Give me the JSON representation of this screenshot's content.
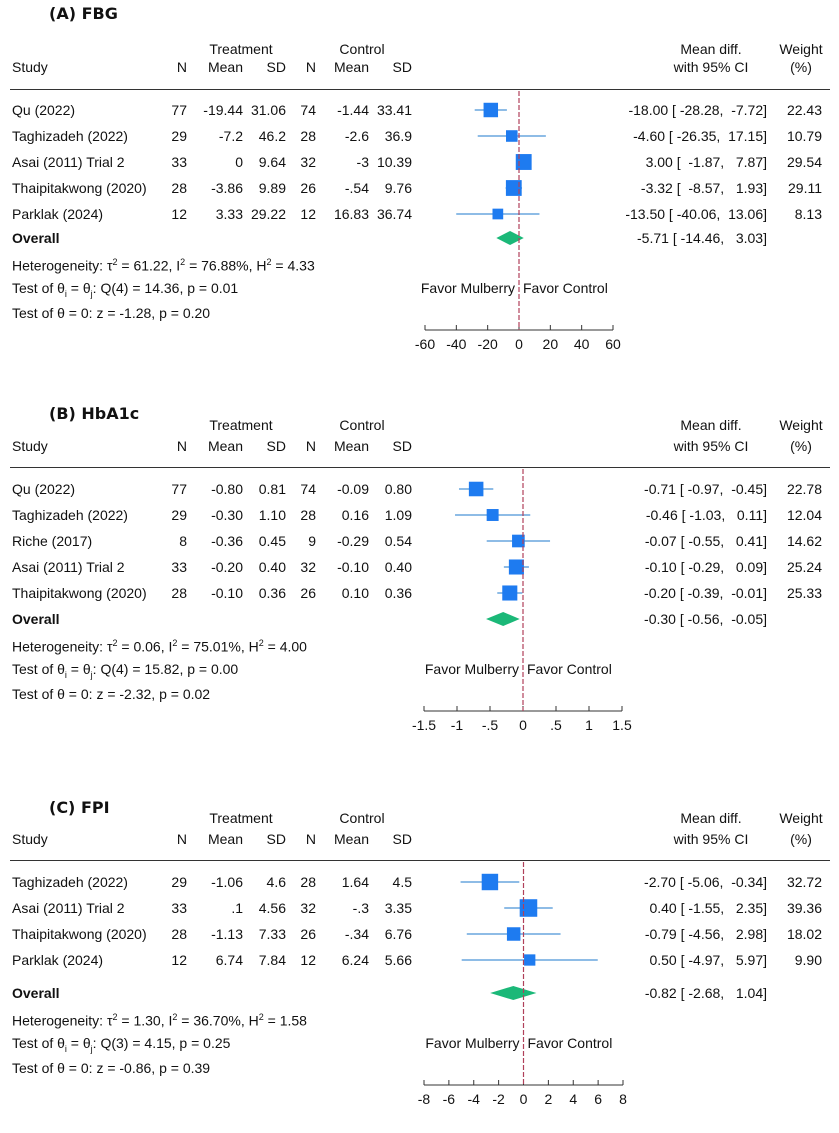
{
  "chart_data": [
    {
      "type": "forest",
      "panel_title": "(A) FBG",
      "headers": {
        "group_treatment": "Treatment",
        "group_control": "Control",
        "study": "Study",
        "n": "N",
        "mean": "Mean",
        "sd": "SD",
        "effect_line1": "Mean diff.",
        "effect_line2": "with 95% CI",
        "weight_line1": "Weight",
        "weight_line2": "(%)"
      },
      "studies": [
        {
          "study": "Qu (2022)",
          "t_n": "77",
          "t_mean": "-19.44",
          "t_sd": "31.06",
          "c_n": "74",
          "c_mean": "-1.44",
          "c_sd": "33.41",
          "md": -18.0,
          "lo": -28.28,
          "hi": -7.72,
          "ci_text": "-18.00 [ -28.28,  -7.72]",
          "weight": 22.43,
          "weight_text": "22.43"
        },
        {
          "study": "Taghizadeh (2022)",
          "t_n": "29",
          "t_mean": "-7.2",
          "t_sd": "46.2",
          "c_n": "28",
          "c_mean": "-2.6",
          "c_sd": "36.9",
          "md": -4.6,
          "lo": -26.35,
          "hi": 17.15,
          "ci_text": "-4.60 [ -26.35,  17.15]",
          "weight": 10.79,
          "weight_text": "10.79"
        },
        {
          "study": "Asai (2011) Trial 2",
          "t_n": "33",
          "t_mean": "0",
          "t_sd": "9.64",
          "c_n": "32",
          "c_mean": "-3",
          "c_sd": "10.39",
          "md": 3.0,
          "lo": -1.87,
          "hi": 7.87,
          "ci_text": "3.00 [  -1.87,   7.87]",
          "weight": 29.54,
          "weight_text": "29.54"
        },
        {
          "study": "Thaipitakwong (2020)",
          "t_n": "28",
          "t_mean": "-3.86",
          "t_sd": "9.89",
          "c_n": "26",
          "c_mean": "-.54",
          "c_sd": "9.76",
          "md": -3.32,
          "lo": -8.57,
          "hi": 1.93,
          "ci_text": "-3.32 [  -8.57,   1.93]",
          "weight": 29.11,
          "weight_text": "29.11"
        },
        {
          "study": "Parklak (2024)",
          "t_n": "12",
          "t_mean": "3.33",
          "t_sd": "29.22",
          "c_n": "12",
          "c_mean": "16.83",
          "c_sd": "36.74",
          "md": -13.5,
          "lo": -40.06,
          "hi": 13.06,
          "ci_text": "-13.50 [ -40.06,  13.06]",
          "weight": 8.13,
          "weight_text": "8.13"
        }
      ],
      "overall": {
        "label": "Overall",
        "md": -5.71,
        "lo": -14.46,
        "hi": 3.03,
        "ci_text": "-5.71 [ -14.46,   3.03]"
      },
      "heterogeneity": {
        "prefix": "Heterogeneity: τ",
        "tau2": " = 61.22, I",
        "i2": " = 76.88%, H",
        "h2": " = 4.33"
      },
      "test_homog": {
        "prefix": "Test of θ",
        "sub_i": "i",
        "mid": " = θ",
        "sub_j": "j",
        "rest": ": Q(4) = 14.36, p = 0.01"
      },
      "test_zero": "Test of θ = 0: z = -1.28, p = 0.20",
      "favor_left": "Favor Mulberry",
      "favor_right": "Favor Control",
      "xlim": [
        -60,
        60
      ],
      "ticks": [
        -60,
        -40,
        -20,
        0,
        20,
        40,
        60
      ],
      "tick_labels": [
        "-60",
        "-40",
        "-20",
        "0",
        "20",
        "40",
        "60"
      ],
      "xlabel": "",
      "ylabel": ""
    },
    {
      "type": "forest",
      "panel_title": "(B) HbA1c",
      "headers": {
        "group_treatment": "Treatment",
        "group_control": "Control",
        "study": "Study",
        "n": "N",
        "mean": "Mean",
        "sd": "SD",
        "effect_line1": "Mean diff.",
        "effect_line2": "with 95% CI",
        "weight_line1": "Weight",
        "weight_line2": "(%)"
      },
      "studies": [
        {
          "study": "Qu (2022)",
          "t_n": "77",
          "t_mean": "-0.80",
          "t_sd": "0.81",
          "c_n": "74",
          "c_mean": "-0.09",
          "c_sd": "0.80",
          "md": -0.71,
          "lo": -0.97,
          "hi": -0.45,
          "ci_text": "-0.71 [ -0.97,  -0.45]",
          "weight": 22.78,
          "weight_text": "22.78"
        },
        {
          "study": "Taghizadeh (2022)",
          "t_n": "29",
          "t_mean": "-0.30",
          "t_sd": "1.10",
          "c_n": "28",
          "c_mean": "0.16",
          "c_sd": "1.09",
          "md": -0.46,
          "lo": -1.03,
          "hi": 0.11,
          "ci_text": "-0.46 [ -1.03,   0.11]",
          "weight": 12.04,
          "weight_text": "12.04"
        },
        {
          "study": "Riche (2017)",
          "t_n": "8",
          "t_mean": "-0.36",
          "t_sd": "0.45",
          "c_n": "9",
          "c_mean": "-0.29",
          "c_sd": "0.54",
          "md": -0.07,
          "lo": -0.55,
          "hi": 0.41,
          "ci_text": "-0.07 [ -0.55,   0.41]",
          "weight": 14.62,
          "weight_text": "14.62"
        },
        {
          "study": "Asai (2011) Trial 2",
          "t_n": "33",
          "t_mean": "-0.20",
          "t_sd": "0.40",
          "c_n": "32",
          "c_mean": "-0.10",
          "c_sd": "0.40",
          "md": -0.1,
          "lo": -0.29,
          "hi": 0.09,
          "ci_text": "-0.10 [ -0.29,   0.09]",
          "weight": 25.24,
          "weight_text": "25.24"
        },
        {
          "study": "Thaipitakwong (2020)",
          "t_n": "28",
          "t_mean": "-0.10",
          "t_sd": "0.36",
          "c_n": "26",
          "c_mean": "0.10",
          "c_sd": "0.36",
          "md": -0.2,
          "lo": -0.39,
          "hi": -0.01,
          "ci_text": "-0.20 [ -0.39,  -0.01]",
          "weight": 25.33,
          "weight_text": "25.33"
        }
      ],
      "overall": {
        "label": "Overall",
        "md": -0.3,
        "lo": -0.56,
        "hi": -0.05,
        "ci_text": "-0.30 [ -0.56,  -0.05]"
      },
      "heterogeneity": {
        "prefix": "Heterogeneity: τ",
        "tau2": " = 0.06, I",
        "i2": " = 75.01%, H",
        "h2": " = 4.00"
      },
      "test_homog": {
        "prefix": "Test of θ",
        "sub_i": "i",
        "mid": " = θ",
        "sub_j": "j",
        "rest": ": Q(4) = 15.82, p = 0.00"
      },
      "test_zero": "Test of θ = 0: z = -2.32, p = 0.02",
      "favor_left": "Favor Mulberry",
      "favor_right": "Favor Control",
      "xlim": [
        -1.5,
        1.5
      ],
      "ticks": [
        -1.5,
        -1,
        -0.5,
        0,
        0.5,
        1,
        1.5
      ],
      "tick_labels": [
        "-1.5",
        "-1",
        "-.5",
        "0",
        ".5",
        "1",
        "1.5"
      ],
      "xlabel": "",
      "ylabel": ""
    },
    {
      "type": "forest",
      "panel_title": "(C) FPI",
      "headers": {
        "group_treatment": "Treatment",
        "group_control": "Control",
        "study": "Study",
        "n": "N",
        "mean": "Mean",
        "sd": "SD",
        "effect_line1": "Mean diff.",
        "effect_line2": "with 95% CI",
        "weight_line1": "Weight",
        "weight_line2": "(%)"
      },
      "studies": [
        {
          "study": "Taghizadeh (2022)",
          "t_n": "29",
          "t_mean": "-1.06",
          "t_sd": "4.6",
          "c_n": "28",
          "c_mean": "1.64",
          "c_sd": "4.5",
          "md": -2.7,
          "lo": -5.06,
          "hi": -0.34,
          "ci_text": "-2.70 [ -5.06,  -0.34]",
          "weight": 32.72,
          "weight_text": "32.72"
        },
        {
          "study": "Asai (2011) Trial 2",
          "t_n": "33",
          "t_mean": ".1",
          "t_sd": "4.56",
          "c_n": "32",
          "c_mean": "-.3",
          "c_sd": "3.35",
          "md": 0.4,
          "lo": -1.55,
          "hi": 2.35,
          "ci_text": "0.40 [ -1.55,   2.35]",
          "weight": 39.36,
          "weight_text": "39.36"
        },
        {
          "study": "Thaipitakwong (2020)",
          "t_n": "28",
          "t_mean": "-1.13",
          "t_sd": "7.33",
          "c_n": "26",
          "c_mean": "-.34",
          "c_sd": "6.76",
          "md": -0.79,
          "lo": -4.56,
          "hi": 2.98,
          "ci_text": "-0.79 [ -4.56,   2.98]",
          "weight": 18.02,
          "weight_text": "18.02"
        },
        {
          "study": "Parklak (2024)",
          "t_n": "12",
          "t_mean": "6.74",
          "t_sd": "7.84",
          "c_n": "12",
          "c_mean": "6.24",
          "c_sd": "5.66",
          "md": 0.5,
          "lo": -4.97,
          "hi": 5.97,
          "ci_text": "0.50 [ -4.97,   5.97]",
          "weight": 9.9,
          "weight_text": "9.90"
        }
      ],
      "overall": {
        "label": "Overall",
        "md": -0.82,
        "lo": -2.68,
        "hi": 1.04,
        "ci_text": "-0.82 [ -2.68,   1.04]"
      },
      "heterogeneity": {
        "prefix": "Heterogeneity: τ",
        "tau2": " = 1.30, I",
        "i2": " = 36.70%, H",
        "h2": " = 1.58"
      },
      "test_homog": {
        "prefix": "Test of θ",
        "sub_i": "i",
        "mid": " = θ",
        "sub_j": "j",
        "rest": ": Q(3) = 4.15, p = 0.25"
      },
      "test_zero": "Test of θ = 0: z = -0.86, p = 0.39",
      "favor_left": "Favor Mulberry",
      "favor_right": "Favor Control",
      "xlim": [
        -8,
        8
      ],
      "ticks": [
        -8,
        -6,
        -4,
        -2,
        0,
        2,
        4,
        6,
        8
      ],
      "tick_labels": [
        "-8",
        "-6",
        "-4",
        "-2",
        "0",
        "2",
        "4",
        "6",
        "8"
      ],
      "xlabel": "",
      "ylabel": ""
    }
  ],
  "colors": {
    "marker": "#1e7bf0",
    "ci_line": "#4a95d8",
    "diamond": "#1bb878",
    "null_line": "#b0405a",
    "axis": "#333333"
  }
}
